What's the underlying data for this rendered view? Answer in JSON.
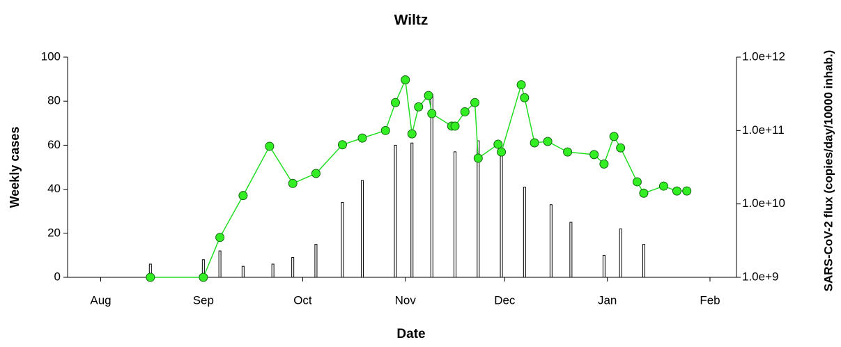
{
  "chart_data": {
    "type": "combo",
    "title": "Wiltz",
    "xlabel": "Date",
    "ylabel": "Weekly cases",
    "y2label": "SARS-CoV-2 flux (copies/day/10000 inhab.)",
    "xlim": [
      -10,
      192
    ],
    "xticks": [
      {
        "value": 0,
        "label": "Aug"
      },
      {
        "value": 31,
        "label": "Sep"
      },
      {
        "value": 61,
        "label": "Oct"
      },
      {
        "value": 92,
        "label": "Nov"
      },
      {
        "value": 122,
        "label": "Dec"
      },
      {
        "value": 153,
        "label": "Jan"
      },
      {
        "value": 184,
        "label": "Feb"
      }
    ],
    "ylim": [
      0,
      100
    ],
    "yticks": [
      0,
      20,
      40,
      60,
      80,
      100
    ],
    "y2lim": [
      1000000000,
      1000000000000
    ],
    "y2log": true,
    "y2ticks": [
      {
        "value": 1000000000,
        "label": "1.0e+9"
      },
      {
        "value": 10000000000,
        "label": "1.0e+10"
      },
      {
        "value": 100000000000,
        "label": "1.0e+11"
      },
      {
        "value": 1000000000000,
        "label": "1.0e+12"
      }
    ],
    "series": [
      {
        "type": "bar",
        "color": "#ffffff",
        "edge_color": "#000000",
        "x": [
          15,
          31,
          36,
          43,
          52,
          58,
          65,
          73,
          79,
          89,
          94,
          100,
          107,
          114,
          121,
          128,
          136,
          142,
          152,
          157,
          164
        ],
        "values": [
          6,
          8,
          12,
          5,
          6,
          9,
          15,
          34,
          44,
          60,
          61,
          83,
          57,
          62,
          56,
          41,
          33,
          25,
          10,
          22,
          15
        ]
      },
      {
        "type": "line",
        "axis": "y2",
        "color": "#22dd22",
        "marker_color": "#33ee22",
        "x": [
          15,
          31,
          36,
          43,
          51,
          58,
          65,
          73,
          79,
          86,
          89,
          92,
          94,
          96,
          99,
          100,
          106,
          107,
          110,
          113,
          114,
          120,
          121,
          127,
          128,
          131,
          135,
          141,
          149,
          152,
          155,
          157,
          162,
          164,
          170,
          174,
          177
        ],
        "values": [
          1000000000,
          1000000000,
          3500000000,
          13000000000,
          61000000000,
          19000000000,
          26000000000,
          64000000000,
          79000000000,
          100000000000,
          240000000000,
          490000000000,
          90000000000,
          210000000000,
          300000000000,
          170000000000,
          115000000000,
          115000000000,
          180000000000,
          240000000000,
          42000000000,
          65000000000,
          51000000000,
          420000000000,
          280000000000,
          68000000000,
          71000000000,
          51000000000,
          47000000000,
          35000000000,
          83000000000,
          58000000000,
          20000000000,
          14000000000,
          17500000000,
          15000000000,
          15000000000
        ]
      }
    ]
  }
}
